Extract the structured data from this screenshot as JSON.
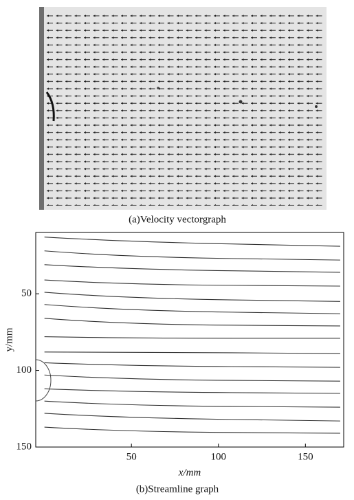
{
  "chart_data": {
    "type": "streamline",
    "top_caption": "(a)Velocity vectorgraph",
    "caption": "(b)Streamline graph",
    "x_label": "x/mm",
    "y_label": "y/mm",
    "xlim": [
      -5,
      172
    ],
    "ylim": [
      150,
      10
    ],
    "xticks": [
      50,
      100,
      150
    ],
    "yticks": [
      50,
      100,
      150
    ],
    "color": "#333333",
    "x": [
      0,
      45,
      170
    ],
    "series": [
      {
        "values": [
          13,
          16,
          19
        ]
      },
      {
        "values": [
          22,
          26,
          28
        ]
      },
      {
        "values": [
          31,
          34,
          36
        ]
      },
      {
        "values": [
          41,
          44,
          45
        ]
      },
      {
        "values": [
          49,
          53,
          55
        ]
      },
      {
        "values": [
          57,
          61,
          63
        ]
      },
      {
        "values": [
          66,
          70,
          71
        ]
      },
      {
        "values": [
          78,
          79,
          79
        ]
      },
      {
        "values": [
          88,
          88,
          89
        ]
      },
      {
        "values": [
          95,
          97,
          98
        ]
      },
      {
        "values": [
          103,
          106,
          107
        ]
      },
      {
        "values": [
          112,
          114,
          115
        ]
      },
      {
        "values": [
          120,
          123,
          124
        ]
      },
      {
        "values": [
          128,
          131,
          133
        ]
      },
      {
        "values": [
          137,
          140,
          141
        ]
      }
    ]
  }
}
